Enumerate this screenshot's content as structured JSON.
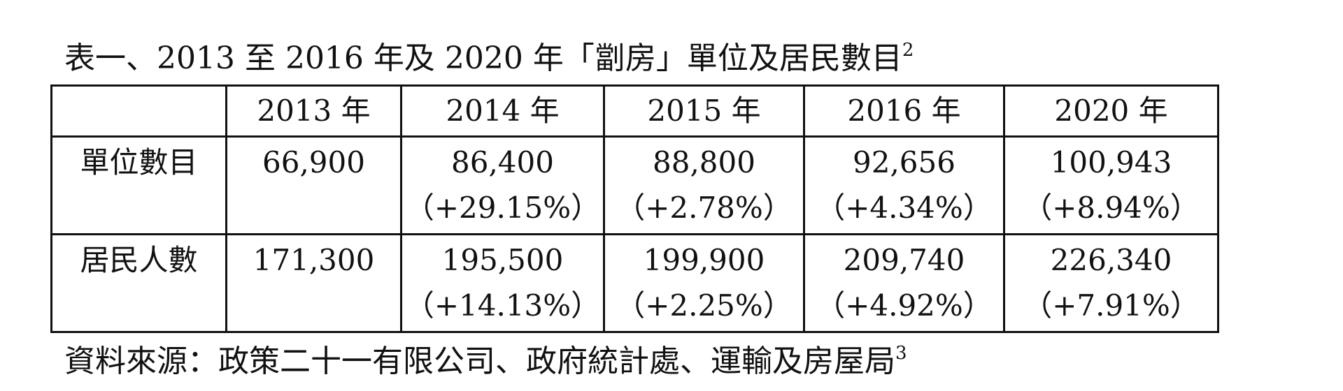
{
  "caption": {
    "text": "表一、2013 至 2016 年及 2020 年「劏房」單位及居民數目",
    "footnote": "2"
  },
  "table": {
    "header": [
      "",
      "2013 年",
      "2014 年",
      "2015 年",
      "2016 年",
      "2020 年"
    ],
    "rows": [
      {
        "label": "單位數目",
        "cells": [
          {
            "value": "66,900",
            "change": ""
          },
          {
            "value": "86,400",
            "change": "（+29.15%）"
          },
          {
            "value": "88,800",
            "change": "（+2.78%）"
          },
          {
            "value": "92,656",
            "change": "（+4.34%）"
          },
          {
            "value": "100,943",
            "change": "（+8.94%）"
          }
        ]
      },
      {
        "label": "居民人數",
        "cells": [
          {
            "value": "171,300",
            "change": ""
          },
          {
            "value": "195,500",
            "change": "（+14.13%）"
          },
          {
            "value": "199,900",
            "change": "（+2.25%）"
          },
          {
            "value": "209,740",
            "change": "（+4.92%）"
          },
          {
            "value": "226,340",
            "change": "（+7.91%）"
          }
        ]
      }
    ]
  },
  "source": {
    "text": "資料來源：政策二十一有限公司、政府統計處、運輸及房屋局",
    "footnote": "3"
  }
}
